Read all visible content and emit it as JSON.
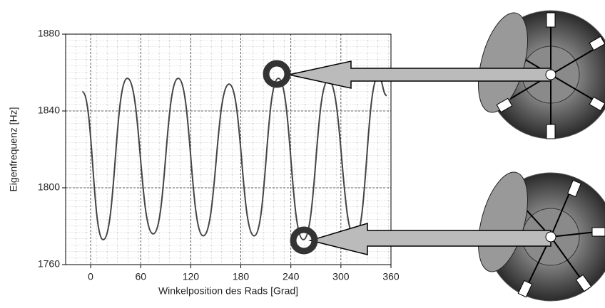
{
  "chart_data": {
    "type": "line",
    "x_label": "Winkelposition des Rads [Grad]",
    "y_label": "Eigenfrequenz [Hz]",
    "series": [
      {
        "color": "#444444",
        "x": [
          -10,
          15,
          44,
          75,
          105,
          135,
          166,
          196,
          225,
          255,
          285,
          317,
          345,
          355
        ],
        "values": [
          1850,
          1773,
          1857,
          1776,
          1857,
          1775,
          1854,
          1775,
          1857,
          1773,
          1856,
          1774,
          1858,
          1848
        ]
      }
    ],
    "xlim": [
      -30,
      360
    ],
    "xticks": [
      0,
      60,
      120,
      180,
      240,
      300,
      360
    ],
    "ylim": [
      1760,
      1880
    ],
    "yticks": [
      1760,
      1800,
      1840,
      1880
    ],
    "grid": true
  }
}
